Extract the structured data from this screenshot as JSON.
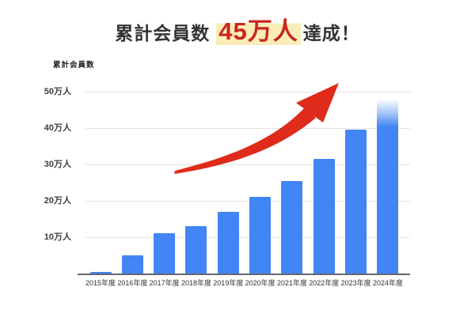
{
  "headline": {
    "prefix": "累計会員数",
    "highlight": "45万人",
    "suffix": "達成！",
    "highlight_color": "#C9261D",
    "highlight_marker_color": "#FAEDB8",
    "text_color": "#333333"
  },
  "chart_data": {
    "type": "bar",
    "title": "累計会員数",
    "ylabel": "累計会員数",
    "xlabel": "",
    "unit": "万人",
    "categories": [
      "2015年度",
      "2016年度",
      "2017年度",
      "2018年度",
      "2019年度",
      "2020年度",
      "2021年度",
      "2022年度",
      "2023年度",
      "2024年度"
    ],
    "values": [
      0.5,
      5,
      11,
      13,
      17,
      21,
      25.5,
      31.5,
      39.5,
      48
    ],
    "yticks": [
      10,
      20,
      30,
      40,
      50
    ],
    "ytick_labels": [
      "10万人",
      "20万人",
      "30万人",
      "40万人",
      "50万人"
    ],
    "ylim": [
      0,
      50
    ],
    "grid": true,
    "legend": false,
    "bar_color": "#4285F4",
    "fade_last_bar": true,
    "annotations": [
      "red curved growth arrow pointing up-right across the chart"
    ]
  },
  "colors": {
    "bar_blue": "#4285F4",
    "arrow_red": "#DF2B1C",
    "gridline": "#E4E4E6",
    "axis_line": "#65686D",
    "background": "#FFFFFF"
  }
}
